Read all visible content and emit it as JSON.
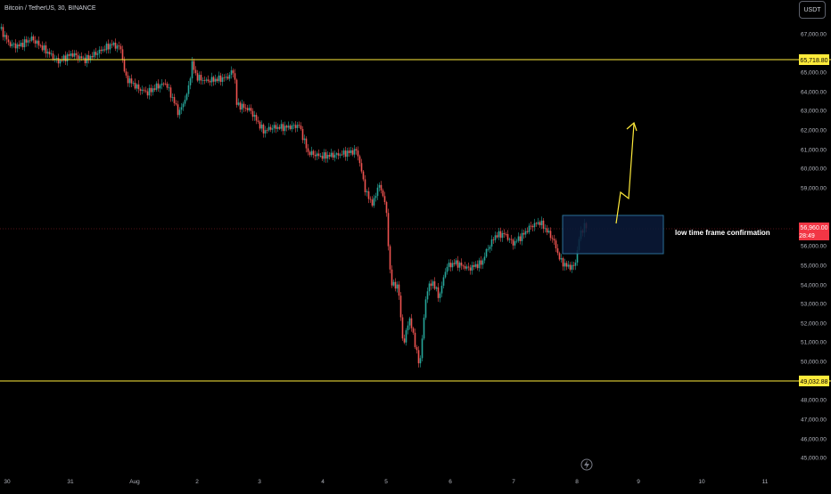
{
  "header": {
    "symbol_legend": "Bitcoin / TetherUS, 30, BINANCE",
    "currency_button": "USDT"
  },
  "annotation": {
    "text": "low time frame confirmation"
  },
  "price_axis": {
    "ticks": [
      "67,000.00",
      "65,000.00",
      "64,000.00",
      "63,000.00",
      "62,000.00",
      "61,000.00",
      "60,000.00",
      "59,000.00",
      "56,000.00",
      "55,000.00",
      "54,000.00",
      "53,000.00",
      "52,000.00",
      "51,000.00",
      "50,000.00",
      "48,000.00",
      "47,000.00",
      "46,000.00",
      "45,000.00"
    ],
    "resistance_label": "65,718.80",
    "current_price_label": "56,960.00",
    "countdown_label": "28:49",
    "support_label": "49,032.88"
  },
  "time_axis": {
    "ticks": [
      "30",
      "31",
      "Aug",
      "2",
      "3",
      "4",
      "5",
      "6",
      "7",
      "8",
      "9",
      "10",
      "11"
    ]
  },
  "icons": {
    "lightning": "lightning-icon"
  },
  "colors": {
    "background": "#000000",
    "bullish": "#26a69a",
    "bearish": "#ef5350",
    "level_line": "#ffeb3b",
    "current_price": "#f23645",
    "box_border": "#2a6f97",
    "box_fill": "#0b1a3a",
    "arrow": "#ffeb3b"
  },
  "chart_data": {
    "type": "candlestick",
    "timeframe": "30",
    "x": [
      "Jul 30",
      "Jul 31",
      "Aug 1",
      "Aug 2",
      "Aug 3",
      "Aug 4",
      "Aug 5",
      "Aug 6",
      "Aug 7",
      "Aug 8"
    ],
    "series": [
      {
        "close": [
          66700,
          65900,
          64500,
          64300,
          61600,
          60700,
          49600,
          55800,
          56500,
          56960
        ],
        "low": [
          65500,
          65300,
          63300,
          62900,
          60500,
          57900,
          49032.88,
          49700,
          54800,
          54800
        ],
        "high": [
          67300,
          67000,
          66000,
          65718.8,
          63200,
          61000,
          59500,
          57000,
          57500,
          57400
        ]
      }
    ],
    "levels": [
      {
        "label": "65,718.80",
        "value": 65718.8
      },
      {
        "label": "49,032.88",
        "value": 49032.88
      }
    ],
    "current_price": 56960,
    "zone": {
      "low": 55500,
      "high": 57500
    },
    "ylim": [
      44800,
      68000
    ]
  }
}
